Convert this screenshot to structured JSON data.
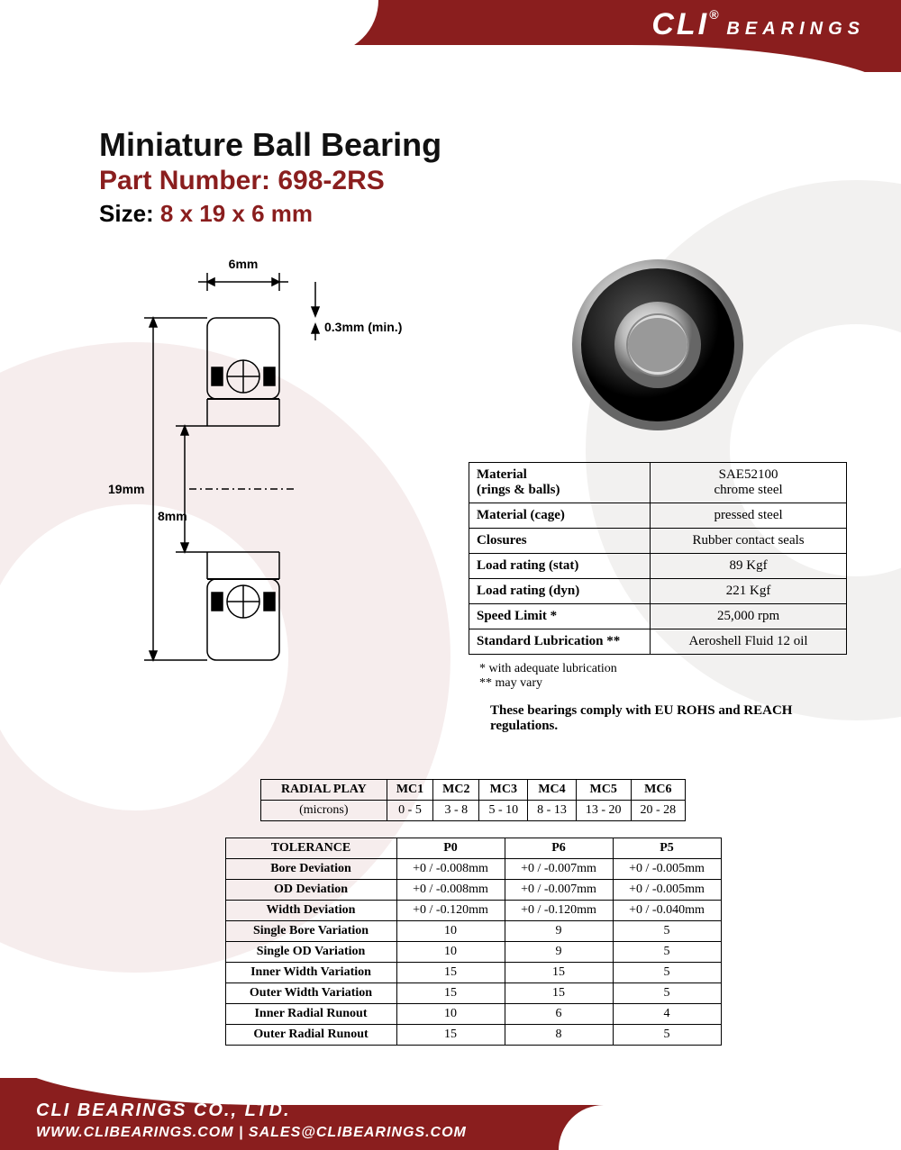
{
  "brand": {
    "name": "CLI",
    "reg": "®",
    "sub": "BEARINGS"
  },
  "colors": {
    "primary": "#8a1e1e",
    "text": "#111111",
    "border": "#000000",
    "bg": "#ffffff"
  },
  "title": {
    "line1": "Miniature Ball Bearing",
    "line2": "Part Number: 698-2RS",
    "size_label": "Size:",
    "size_value": "8 x 19 x 6 mm"
  },
  "diagram": {
    "width_label": "6mm",
    "outer_dia_label": "19mm",
    "bore_label": "8mm",
    "chamfer_label": "0.3mm (min.)"
  },
  "spec_rows": [
    {
      "k": "Material\n(rings & balls)",
      "v": "SAE52100\nchrome steel"
    },
    {
      "k": "Material (cage)",
      "v": "pressed steel"
    },
    {
      "k": "Closures",
      "v": "Rubber contact seals"
    },
    {
      "k": "Load rating (stat)",
      "v": "89 Kgf"
    },
    {
      "k": "Load rating (dyn)",
      "v": "221 Kgf"
    },
    {
      "k": "Speed Limit *",
      "v": "25,000 rpm"
    },
    {
      "k": "Standard Lubrication **",
      "v": "Aeroshell Fluid 12 oil"
    }
  ],
  "footnotes": {
    "a": "* with adequate lubrication",
    "b": "** may vary"
  },
  "compliance": "These bearings comply with EU ROHS and REACH  regulations.",
  "radial": {
    "header": "RADIAL PLAY",
    "unit": "(microns)",
    "cols": [
      "MC1",
      "MC2",
      "MC3",
      "MC4",
      "MC5",
      "MC6"
    ],
    "vals": [
      "0 - 5",
      "3 - 8",
      "5 - 10",
      "8 - 13",
      "13 - 20",
      "20 - 28"
    ]
  },
  "tolerance": {
    "header": "TOLERANCE",
    "cols": [
      "P0",
      "P6",
      "P5"
    ],
    "rows": [
      {
        "k": "Bore Deviation",
        "v": [
          "+0 / -0.008mm",
          "+0 / -0.007mm",
          "+0 / -0.005mm"
        ]
      },
      {
        "k": "OD Deviation",
        "v": [
          "+0 / -0.008mm",
          "+0 / -0.007mm",
          "+0 / -0.005mm"
        ]
      },
      {
        "k": "Width Deviation",
        "v": [
          "+0 / -0.120mm",
          "+0 / -0.120mm",
          "+0 / -0.040mm"
        ]
      },
      {
        "k": "Single Bore Variation",
        "v": [
          "10",
          "9",
          "5"
        ]
      },
      {
        "k": "Single OD Variation",
        "v": [
          "10",
          "9",
          "5"
        ]
      },
      {
        "k": "Inner Width Variation",
        "v": [
          "15",
          "15",
          "5"
        ]
      },
      {
        "k": "Outer Width Variation",
        "v": [
          "15",
          "15",
          "5"
        ]
      },
      {
        "k": "Inner Radial Runout",
        "v": [
          "10",
          "6",
          "4"
        ]
      },
      {
        "k": "Outer Radial Runout",
        "v": [
          "15",
          "8",
          "5"
        ]
      }
    ]
  },
  "footer": {
    "company": "CLI BEARINGS CO., LTD.",
    "contact": "WWW.CLIBEARINGS.COM   |   SALES@CLIBEARINGS.COM"
  }
}
